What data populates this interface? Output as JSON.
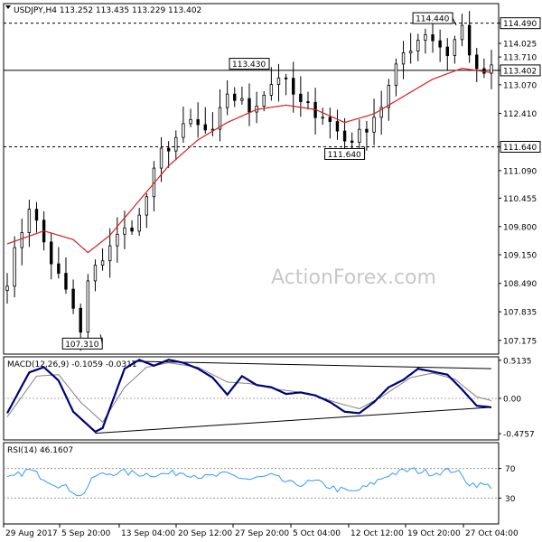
{
  "chart_data": [
    {
      "type": "candlestick",
      "panel": "price",
      "title": "USDJPY,H4  113.252 113.435 113.229 113.402",
      "last_price": "113.402",
      "ylim": [
        106.9,
        114.9
      ],
      "y_ticks": [
        "114.490",
        "114.025",
        "113.710",
        "113.402",
        "113.070",
        "112.410",
        "111.640",
        "111.090",
        "110.455",
        "109.800",
        "109.150",
        "108.490",
        "107.835",
        "107.175"
      ],
      "horizontal_lines": [
        {
          "value": 114.49,
          "label": "114.490",
          "style": "dashed"
        },
        {
          "value": 111.64,
          "label": "111.640",
          "style": "dashed"
        },
        {
          "value": 113.402,
          "style": "solid"
        }
      ],
      "annotations": [
        {
          "text": "114.440",
          "value": 114.44,
          "at": "19 Oct 20:00"
        },
        {
          "text": "113.430",
          "value": 113.43,
          "at": "27 Sep 20:00"
        },
        {
          "text": "111.640",
          "value": 111.64,
          "at": "12 Oct 12:00"
        },
        {
          "text": "107.310",
          "value": 107.31,
          "at": "5 Sep 20:00"
        }
      ],
      "series": [
        {
          "name": "",
          "kind": "close_path",
          "x": [
            "29 Aug 2017",
            "5 Sep 20:00",
            "13 Sep 04:00",
            "20 Sep 12:00",
            "27 Sep 20:00",
            "5 Oct 04:00",
            "12 Oct 12:00",
            "19 Oct 20:00",
            "27 Oct 04:00"
          ],
          "anchors": [
            [
              0,
              108.6
            ],
            [
              3,
              110.3
            ],
            [
              6,
              109.0
            ],
            [
              9,
              107.9
            ],
            [
              10,
              107.3
            ],
            [
              11,
              108.5
            ],
            [
              14,
              109.4
            ],
            [
              18,
              110.0
            ],
            [
              21,
              111.5
            ],
            [
              25,
              112.2
            ],
            [
              28,
              111.9
            ],
            [
              30,
              112.9
            ],
            [
              33,
              112.5
            ],
            [
              37,
              113.3
            ],
            [
              40,
              112.6
            ],
            [
              43,
              112.4
            ],
            [
              46,
              111.8
            ],
            [
              48,
              111.9
            ],
            [
              51,
              112.6
            ],
            [
              54,
              113.8
            ],
            [
              57,
              114.3
            ],
            [
              60,
              113.8
            ],
            [
              62,
              114.4
            ],
            [
              64,
              113.3
            ],
            [
              66,
              113.4
            ]
          ]
        },
        {
          "name": "",
          "kind": "moving_average",
          "color": "#d42020",
          "anchors": [
            [
              0,
              109.4
            ],
            [
              5,
              109.7
            ],
            [
              9,
              109.5
            ],
            [
              11,
              109.2
            ],
            [
              14,
              109.6
            ],
            [
              18,
              110.4
            ],
            [
              22,
              111.2
            ],
            [
              26,
              111.8
            ],
            [
              30,
              112.2
            ],
            [
              34,
              112.5
            ],
            [
              38,
              112.6
            ],
            [
              42,
              112.5
            ],
            [
              46,
              112.2
            ],
            [
              50,
              112.4
            ],
            [
              54,
              112.8
            ],
            [
              58,
              113.2
            ],
            [
              62,
              113.45
            ],
            [
              66,
              113.35
            ]
          ]
        }
      ]
    },
    {
      "type": "line",
      "panel": "macd",
      "title": "MACD(12,26,9) -0.1059 -0.0311",
      "ylim": [
        -0.56,
        0.56
      ],
      "y_ticks": [
        "0.5135",
        "0.00",
        "-0.4757"
      ],
      "trendlines": [
        {
          "from": [
            17,
            0.5
          ],
          "to": [
            66,
            0.4
          ]
        },
        {
          "from": [
            12,
            -0.47
          ],
          "to": [
            66,
            -0.12
          ]
        }
      ],
      "series": [
        {
          "name": "",
          "color": "#00007a",
          "anchors": [
            [
              0,
              -0.2
            ],
            [
              3,
              0.35
            ],
            [
              5,
              0.42
            ],
            [
              7,
              0.24
            ],
            [
              9,
              -0.18
            ],
            [
              12,
              -0.45
            ],
            [
              13,
              -0.4
            ],
            [
              16,
              0.4
            ],
            [
              18,
              0.52
            ],
            [
              20,
              0.44
            ],
            [
              22,
              0.52
            ],
            [
              24,
              0.48
            ],
            [
              26,
              0.4
            ],
            [
              28,
              0.28
            ],
            [
              30,
              0.05
            ],
            [
              32,
              0.3
            ],
            [
              34,
              0.18
            ],
            [
              36,
              0.15
            ],
            [
              38,
              0.06
            ],
            [
              40,
              0.08
            ],
            [
              42,
              0.04
            ],
            [
              44,
              -0.05
            ],
            [
              46,
              -0.18
            ],
            [
              48,
              -0.2
            ],
            [
              50,
              -0.05
            ],
            [
              52,
              0.15
            ],
            [
              54,
              0.25
            ],
            [
              56,
              0.4
            ],
            [
              58,
              0.36
            ],
            [
              60,
              0.32
            ],
            [
              62,
              0.12
            ],
            [
              64,
              -0.1
            ],
            [
              66,
              -0.12
            ]
          ]
        },
        {
          "name": "",
          "color": "#808080",
          "anchors": [
            [
              0,
              -0.25
            ],
            [
              4,
              0.3
            ],
            [
              7,
              0.32
            ],
            [
              10,
              -0.05
            ],
            [
              13,
              -0.32
            ],
            [
              16,
              0.15
            ],
            [
              19,
              0.42
            ],
            [
              22,
              0.48
            ],
            [
              26,
              0.42
            ],
            [
              30,
              0.22
            ],
            [
              33,
              0.2
            ],
            [
              37,
              0.12
            ],
            [
              41,
              0.07
            ],
            [
              45,
              -0.06
            ],
            [
              48,
              -0.14
            ],
            [
              51,
              0.02
            ],
            [
              55,
              0.28
            ],
            [
              58,
              0.34
            ],
            [
              61,
              0.26
            ],
            [
              64,
              0.02
            ],
            [
              66,
              -0.03
            ]
          ]
        }
      ]
    },
    {
      "type": "line",
      "panel": "rsi",
      "title": "RSI(14) 46.1607",
      "ylim": [
        0,
        100
      ],
      "y_ticks": [
        "70",
        "30"
      ],
      "levels": [
        70,
        30
      ],
      "series": [
        {
          "name": "",
          "color": "#3399ff",
          "anchors": [
            [
              0,
              55
            ],
            [
              3,
              68
            ],
            [
              6,
              52
            ],
            [
              9,
              40
            ],
            [
              10,
              32
            ],
            [
              12,
              60
            ],
            [
              15,
              65
            ],
            [
              18,
              63
            ],
            [
              21,
              62
            ],
            [
              24,
              65
            ],
            [
              27,
              58
            ],
            [
              30,
              62
            ],
            [
              33,
              55
            ],
            [
              36,
              60
            ],
            [
              39,
              48
            ],
            [
              42,
              52
            ],
            [
              45,
              42
            ],
            [
              47,
              38
            ],
            [
              49,
              45
            ],
            [
              52,
              62
            ],
            [
              55,
              68
            ],
            [
              58,
              64
            ],
            [
              61,
              68
            ],
            [
              63,
              50
            ],
            [
              66,
              46
            ]
          ]
        }
      ]
    }
  ],
  "x_axis_labels": [
    "29 Aug 2017",
    "5 Sep 20:00",
    "13 Sep 04:00",
    "20 Sep 12:00",
    "27 Sep 20:00",
    "5 Oct 04:00",
    "12 Oct 12:00",
    "19 Oct 20:00",
    "27 Oct 04:00"
  ],
  "watermark": "ActionForex.com"
}
